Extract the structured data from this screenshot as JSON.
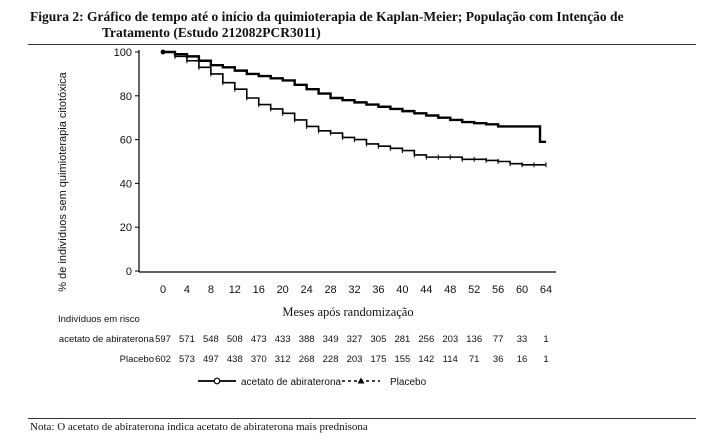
{
  "figure": {
    "title_line1": "Figura 2: Gráfico de tempo até o início da quimioterapia de Kaplan-Meier; População com Intenção de",
    "title_line2": "Tratamento (Estudo 212082PCR3011)",
    "note": "Nota: O acetato de abiraterona indica acetato de abiraterona mais prednisona"
  },
  "chart_data": {
    "type": "line",
    "title": "",
    "xlabel": "Meses após randomização",
    "ylabel": "% de indivíduos sem quimioterapia citotóxica",
    "xlim": [
      0,
      64
    ],
    "ylim": [
      0,
      100
    ],
    "x_ticks": [
      "0",
      "4",
      "8",
      "12",
      "16",
      "20",
      "24",
      "28",
      "32",
      "36",
      "40",
      "44",
      "48",
      "52",
      "56",
      "60",
      "64"
    ],
    "y_ticks": [
      "0",
      "20",
      "40",
      "60",
      "80",
      "100"
    ],
    "legend_position": "bottom",
    "series": [
      {
        "name": "acetato de abiraterona",
        "marker": "circle",
        "line_style": "solid",
        "x": [
          0,
          2,
          4,
          6,
          8,
          10,
          12,
          14,
          16,
          18,
          20,
          22,
          24,
          26,
          28,
          30,
          32,
          34,
          36,
          38,
          40,
          42,
          44,
          46,
          48,
          50,
          52,
          54,
          56,
          58,
          60,
          62,
          63,
          64
        ],
        "y": [
          100,
          99,
          98,
          96,
          94,
          93,
          91.5,
          90,
          89,
          88,
          87,
          85,
          83,
          81,
          79,
          78,
          77,
          76,
          75,
          74,
          73,
          72,
          71,
          70,
          69,
          68,
          67.5,
          67,
          66,
          66,
          66,
          66,
          59,
          59
        ]
      },
      {
        "name": "Placebo",
        "marker": "triangle",
        "line_style": "dashed",
        "x": [
          0,
          2,
          4,
          6,
          8,
          10,
          12,
          14,
          16,
          18,
          20,
          22,
          24,
          26,
          28,
          30,
          32,
          34,
          36,
          38,
          40,
          42,
          44,
          46,
          48,
          50,
          52,
          54,
          56,
          58,
          60,
          62,
          64
        ],
        "y": [
          100,
          98,
          96,
          93,
          90,
          86,
          83,
          79,
          76,
          74,
          72,
          69,
          66,
          64,
          63,
          61,
          60,
          58,
          57,
          56,
          55,
          53,
          52,
          52,
          52,
          51,
          51,
          50.5,
          50,
          49,
          48.5,
          48.5,
          48.5
        ]
      }
    ],
    "risk_table": {
      "header": "Indivíduos em risco",
      "rows": [
        {
          "label": "acetato de abiraterona",
          "values": [
            "597",
            "571",
            "548",
            "508",
            "473",
            "433",
            "388",
            "349",
            "327",
            "305",
            "281",
            "256",
            "203",
            "136",
            "77",
            "33",
            "1"
          ]
        },
        {
          "label": "Placebo",
          "values": [
            "602",
            "573",
            "497",
            "438",
            "370",
            "312",
            "268",
            "228",
            "203",
            "175",
            "155",
            "142",
            "114",
            "71",
            "36",
            "16",
            "1"
          ]
        }
      ]
    }
  }
}
